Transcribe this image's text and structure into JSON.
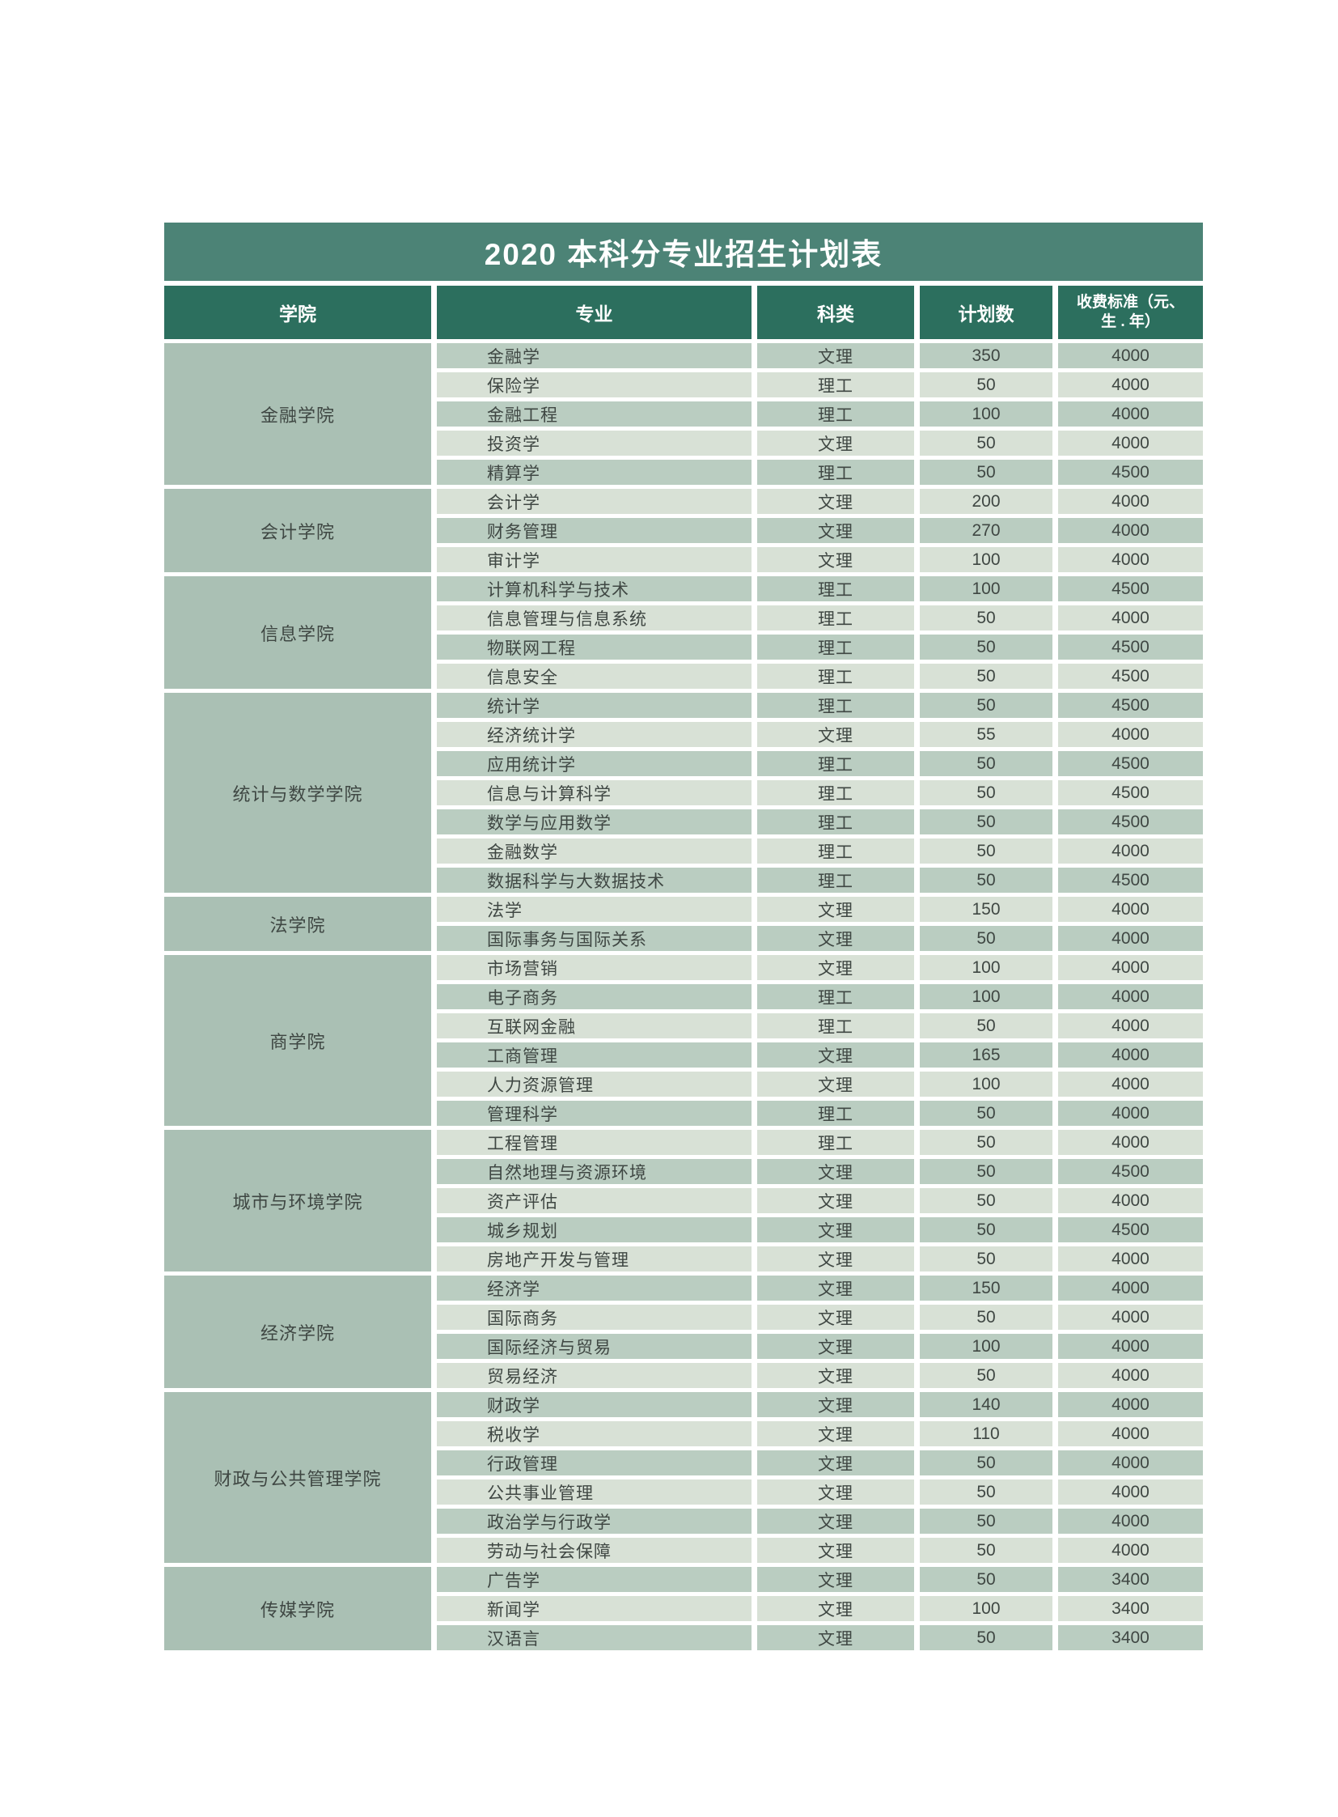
{
  "title": "2020 本科分专业招生计划表",
  "columns": [
    "学院",
    "专业",
    "科类",
    "计划数"
  ],
  "fee_header_line1": "收费标准（元、",
  "fee_header_line2": "生 . 年）",
  "colors": {
    "title_bar": "#4c8376",
    "header_bar": "#2c6f5e",
    "row_dark": "#bacdc1",
    "row_light": "#d8e1d6",
    "college_cell": "#aac0b4",
    "text_dark": "#3f4743"
  },
  "groups": [
    {
      "college": "金融学院",
      "majors": [
        {
          "major": "金融学",
          "category": "文理",
          "plan": "350",
          "fee": "4000"
        },
        {
          "major": "保险学",
          "category": "理工",
          "plan": "50",
          "fee": "4000"
        },
        {
          "major": "金融工程",
          "category": "理工",
          "plan": "100",
          "fee": "4000"
        },
        {
          "major": "投资学",
          "category": "文理",
          "plan": "50",
          "fee": "4000"
        },
        {
          "major": "精算学",
          "category": "理工",
          "plan": "50",
          "fee": "4500"
        }
      ]
    },
    {
      "college": "会计学院",
      "majors": [
        {
          "major": "会计学",
          "category": "文理",
          "plan": "200",
          "fee": "4000"
        },
        {
          "major": "财务管理",
          "category": "文理",
          "plan": "270",
          "fee": "4000"
        },
        {
          "major": "审计学",
          "category": "文理",
          "plan": "100",
          "fee": "4000"
        }
      ]
    },
    {
      "college": "信息学院",
      "majors": [
        {
          "major": "计算机科学与技术",
          "category": "理工",
          "plan": "100",
          "fee": "4500"
        },
        {
          "major": "信息管理与信息系统",
          "category": "理工",
          "plan": "50",
          "fee": "4000"
        },
        {
          "major": "物联网工程",
          "category": "理工",
          "plan": "50",
          "fee": "4500"
        },
        {
          "major": "信息安全",
          "category": "理工",
          "plan": "50",
          "fee": "4500"
        }
      ]
    },
    {
      "college": "统计与数学学院",
      "majors": [
        {
          "major": "统计学",
          "category": "理工",
          "plan": "50",
          "fee": "4500"
        },
        {
          "major": "经济统计学",
          "category": "文理",
          "plan": "55",
          "fee": "4000"
        },
        {
          "major": "应用统计学",
          "category": "理工",
          "plan": "50",
          "fee": "4500"
        },
        {
          "major": "信息与计算科学",
          "category": "理工",
          "plan": "50",
          "fee": "4500"
        },
        {
          "major": "数学与应用数学",
          "category": "理工",
          "plan": "50",
          "fee": "4500"
        },
        {
          "major": "金融数学",
          "category": "理工",
          "plan": "50",
          "fee": "4000"
        },
        {
          "major": "数据科学与大数据技术",
          "category": "理工",
          "plan": "50",
          "fee": "4500"
        }
      ]
    },
    {
      "college": "法学院",
      "majors": [
        {
          "major": "法学",
          "category": "文理",
          "plan": "150",
          "fee": "4000"
        },
        {
          "major": "国际事务与国际关系",
          "category": "文理",
          "plan": "50",
          "fee": "4000"
        }
      ]
    },
    {
      "college": "商学院",
      "majors": [
        {
          "major": "市场营销",
          "category": "文理",
          "plan": "100",
          "fee": "4000"
        },
        {
          "major": "电子商务",
          "category": "理工",
          "plan": "100",
          "fee": "4000"
        },
        {
          "major": "互联网金融",
          "category": "理工",
          "plan": "50",
          "fee": "4000"
        },
        {
          "major": "工商管理",
          "category": "文理",
          "plan": "165",
          "fee": "4000"
        },
        {
          "major": "人力资源管理",
          "category": "文理",
          "plan": "100",
          "fee": "4000"
        },
        {
          "major": "管理科学",
          "category": "理工",
          "plan": "50",
          "fee": "4000"
        }
      ]
    },
    {
      "college": "城市与环境学院",
      "majors": [
        {
          "major": "工程管理",
          "category": "理工",
          "plan": "50",
          "fee": "4000"
        },
        {
          "major": "自然地理与资源环境",
          "category": "文理",
          "plan": "50",
          "fee": "4500"
        },
        {
          "major": "资产评估",
          "category": "文理",
          "plan": "50",
          "fee": "4000"
        },
        {
          "major": "城乡规划",
          "category": "文理",
          "plan": "50",
          "fee": "4500"
        },
        {
          "major": "房地产开发与管理",
          "category": "文理",
          "plan": "50",
          "fee": "4000"
        }
      ]
    },
    {
      "college": "经济学院",
      "majors": [
        {
          "major": "经济学",
          "category": "文理",
          "plan": "150",
          "fee": "4000"
        },
        {
          "major": "国际商务",
          "category": "文理",
          "plan": "50",
          "fee": "4000"
        },
        {
          "major": "国际经济与贸易",
          "category": "文理",
          "plan": "100",
          "fee": "4000"
        },
        {
          "major": "贸易经济",
          "category": "文理",
          "plan": "50",
          "fee": "4000"
        }
      ]
    },
    {
      "college": "财政与公共管理学院",
      "majors": [
        {
          "major": "财政学",
          "category": "文理",
          "plan": "140",
          "fee": "4000"
        },
        {
          "major": "税收学",
          "category": "文理",
          "plan": "110",
          "fee": "4000"
        },
        {
          "major": "行政管理",
          "category": "文理",
          "plan": "50",
          "fee": "4000"
        },
        {
          "major": "公共事业管理",
          "category": "文理",
          "plan": "50",
          "fee": "4000"
        },
        {
          "major": "政治学与行政学",
          "category": "文理",
          "plan": "50",
          "fee": "4000"
        },
        {
          "major": "劳动与社会保障",
          "category": "文理",
          "plan": "50",
          "fee": "4000"
        }
      ]
    },
    {
      "college": "传媒学院",
      "majors": [
        {
          "major": "广告学",
          "category": "文理",
          "plan": "50",
          "fee": "3400"
        },
        {
          "major": "新闻学",
          "category": "文理",
          "plan": "100",
          "fee": "3400"
        },
        {
          "major": "汉语言",
          "category": "文理",
          "plan": "50",
          "fee": "3400"
        }
      ]
    }
  ]
}
